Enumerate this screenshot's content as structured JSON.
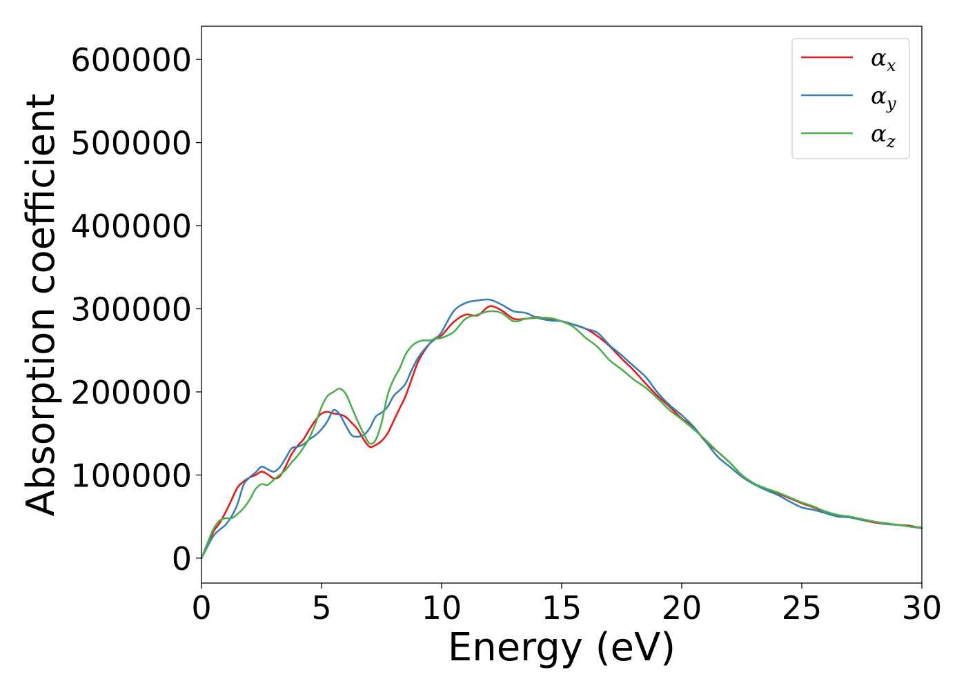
{
  "chart_data": {
    "type": "line",
    "title": "",
    "xlabel": "Energy (eV)",
    "ylabel": "Absorption coefficient",
    "xlim": [
      0,
      30
    ],
    "ylim": [
      -30000,
      640000
    ],
    "xticks": [
      0,
      5,
      10,
      15,
      20,
      25,
      30
    ],
    "yticks": [
      0,
      100000,
      200000,
      300000,
      400000,
      500000,
      600000
    ],
    "grid": false,
    "legend_position": "top-right",
    "series": [
      {
        "name": "αx",
        "symbol": "α",
        "subscript": "x",
        "color": "#e41a1c",
        "x": [
          0,
          0.25,
          0.5,
          0.75,
          1,
          1.25,
          1.5,
          1.75,
          2,
          2.25,
          2.5,
          2.75,
          3,
          3.25,
          3.5,
          3.75,
          4,
          4.25,
          4.5,
          4.75,
          5,
          5.25,
          5.5,
          5.75,
          6,
          6.25,
          6.5,
          6.75,
          7,
          7.25,
          7.5,
          7.75,
          8,
          8.25,
          8.5,
          8.75,
          9,
          9.25,
          9.5,
          9.75,
          10,
          10.5,
          11,
          11.5,
          12,
          12.5,
          13,
          13.5,
          14,
          14.5,
          15,
          15.5,
          16,
          16.5,
          17,
          17.5,
          18,
          18.5,
          19,
          19.5,
          20,
          20.5,
          21,
          21.5,
          22,
          22.5,
          23,
          23.5,
          24,
          24.5,
          25,
          25.5,
          26,
          26.5,
          27,
          27.5,
          28,
          28.5,
          29,
          29.5,
          30
        ],
        "y": [
          0,
          15000,
          32000,
          42000,
          55000,
          70000,
          85000,
          92000,
          97000,
          100000,
          104000,
          101000,
          96000,
          98000,
          110000,
          125000,
          135000,
          143000,
          155000,
          166000,
          174000,
          176000,
          174000,
          173000,
          170000,
          163000,
          155000,
          143000,
          134000,
          136000,
          141000,
          150000,
          165000,
          180000,
          195000,
          215000,
          235000,
          248000,
          258000,
          265000,
          268000,
          284000,
          293000,
          292000,
          303000,
          298000,
          288000,
          288000,
          290000,
          287000,
          285000,
          281000,
          276000,
          267000,
          255000,
          240000,
          226000,
          210000,
          195000,
          182000,
          168000,
          157000,
          140000,
          128000,
          115000,
          100000,
          90000,
          83000,
          78000,
          72000,
          66000,
          61000,
          55000,
          51000,
          49000,
          46000,
          43000,
          41000,
          40000,
          39000,
          36000
        ]
      },
      {
        "name": "αy",
        "symbol": "α",
        "subscript": "y",
        "color": "#377eb8",
        "x": [
          0,
          0.25,
          0.5,
          0.75,
          1,
          1.25,
          1.5,
          1.75,
          2,
          2.25,
          2.5,
          2.75,
          3,
          3.25,
          3.5,
          3.75,
          4,
          4.25,
          4.5,
          4.75,
          5,
          5.25,
          5.5,
          5.75,
          6,
          6.25,
          6.5,
          6.75,
          7,
          7.25,
          7.5,
          7.75,
          8,
          8.25,
          8.5,
          8.75,
          9,
          9.25,
          9.5,
          9.75,
          10,
          10.5,
          11,
          11.5,
          12,
          12.5,
          13,
          13.5,
          14,
          14.5,
          15,
          15.5,
          16,
          16.5,
          17,
          17.5,
          18,
          18.5,
          19,
          19.5,
          20,
          20.5,
          21,
          21.5,
          22,
          22.5,
          23,
          23.5,
          24,
          24.5,
          25,
          25.5,
          26,
          26.5,
          27,
          27.5,
          28,
          28.5,
          29,
          29.5,
          30
        ],
        "y": [
          0,
          14000,
          27000,
          34000,
          40000,
          50000,
          65000,
          88000,
          97000,
          103000,
          110000,
          107000,
          104000,
          109000,
          120000,
          132000,
          134000,
          137000,
          143000,
          148000,
          155000,
          165000,
          178000,
          173000,
          160000,
          148000,
          146000,
          148000,
          156000,
          170000,
          175000,
          182000,
          195000,
          202000,
          210000,
          226000,
          240000,
          250000,
          258000,
          264000,
          272000,
          297000,
          307000,
          310000,
          311000,
          305000,
          297000,
          295000,
          289000,
          286000,
          285000,
          281000,
          276000,
          271000,
          256000,
          244000,
          231000,
          218000,
          199000,
          184000,
          172000,
          158000,
          140000,
          122000,
          110000,
          98000,
          89000,
          82000,
          76000,
          68000,
          61000,
          58000,
          54000,
          50000,
          49000,
          46000,
          44000,
          41000,
          40000,
          38000,
          36000
        ]
      },
      {
        "name": "αz",
        "symbol": "α",
        "subscript": "z",
        "color": "#4daf4a",
        "x": [
          0,
          0.25,
          0.5,
          0.75,
          1,
          1.25,
          1.5,
          1.75,
          2,
          2.25,
          2.5,
          2.75,
          3,
          3.25,
          3.5,
          3.75,
          4,
          4.25,
          4.5,
          4.75,
          5,
          5.25,
          5.5,
          5.75,
          6,
          6.25,
          6.5,
          6.75,
          7,
          7.25,
          7.5,
          7.75,
          8,
          8.25,
          8.5,
          8.75,
          9,
          9.25,
          9.5,
          9.75,
          10,
          10.5,
          11,
          11.5,
          12,
          12.5,
          13,
          13.5,
          14,
          14.5,
          15,
          15.5,
          16,
          16.5,
          17,
          17.5,
          18,
          18.5,
          19,
          19.5,
          20,
          20.5,
          21,
          21.5,
          22,
          22.5,
          23,
          23.5,
          24,
          24.5,
          25,
          25.5,
          26,
          26.5,
          27,
          27.5,
          28,
          28.5,
          29,
          29.5,
          30
        ],
        "y": [
          0,
          18000,
          35000,
          45000,
          48000,
          48000,
          53000,
          60000,
          70000,
          83000,
          89000,
          88000,
          94000,
          100000,
          106000,
          115000,
          123000,
          133000,
          145000,
          162000,
          182000,
          195000,
          200000,
          204000,
          198000,
          182000,
          165000,
          150000,
          138000,
          142000,
          163000,
          196000,
          215000,
          228000,
          245000,
          255000,
          260000,
          262000,
          262000,
          264000,
          265000,
          272000,
          288000,
          293000,
          297000,
          295000,
          285000,
          288000,
          289000,
          289000,
          285000,
          278000,
          265000,
          254000,
          238000,
          227000,
          215000,
          205000,
          192000,
          178000,
          167000,
          155000,
          142000,
          128000,
          115000,
          100000,
          90000,
          84000,
          79000,
          73000,
          67000,
          62000,
          56000,
          52000,
          50000,
          47000,
          44000,
          42000,
          40000,
          38000,
          37000
        ]
      }
    ]
  }
}
